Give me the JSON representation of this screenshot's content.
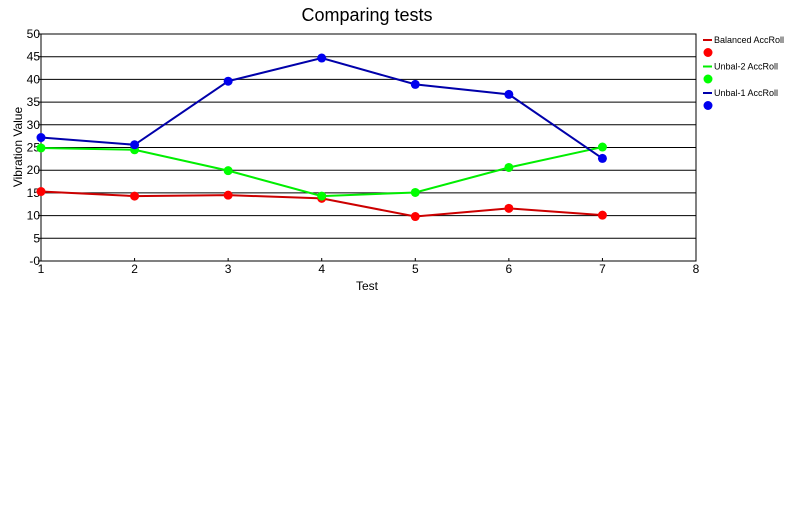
{
  "chart_data": {
    "type": "line",
    "title": "Comparing tests",
    "xlabel": "Test",
    "ylabel": "Vibration Value",
    "xlim": [
      1,
      8
    ],
    "ylim": [
      0,
      50
    ],
    "x_ticks": [
      "1",
      "2",
      "3",
      "4",
      "5",
      "6",
      "7",
      "8"
    ],
    "y_ticks": [
      "-0",
      "5",
      "10",
      "15",
      "20",
      "25",
      "30",
      "35",
      "40",
      "45",
      "50"
    ],
    "grid": "horizontal",
    "legend_position": "right",
    "x": [
      1,
      2,
      3,
      4,
      5,
      6,
      7
    ],
    "series": [
      {
        "name": "Balanced AccRoll",
        "color": "#cc0000",
        "marker_color": "#ff0000",
        "values": [
          15.3,
          14.3,
          14.5,
          13.8,
          9.8,
          11.6,
          10.1
        ]
      },
      {
        "name": "Unbal-2 AccRoll",
        "color": "#00ee00",
        "marker_color": "#00ff00",
        "values": [
          24.9,
          24.5,
          19.9,
          14.3,
          15.1,
          20.6,
          25.1
        ]
      },
      {
        "name": "Unbal-1 AccRoll",
        "color": "#0000aa",
        "marker_color": "#0000ee",
        "values": [
          27.2,
          25.6,
          39.6,
          44.7,
          38.9,
          36.7,
          22.6
        ]
      }
    ]
  }
}
